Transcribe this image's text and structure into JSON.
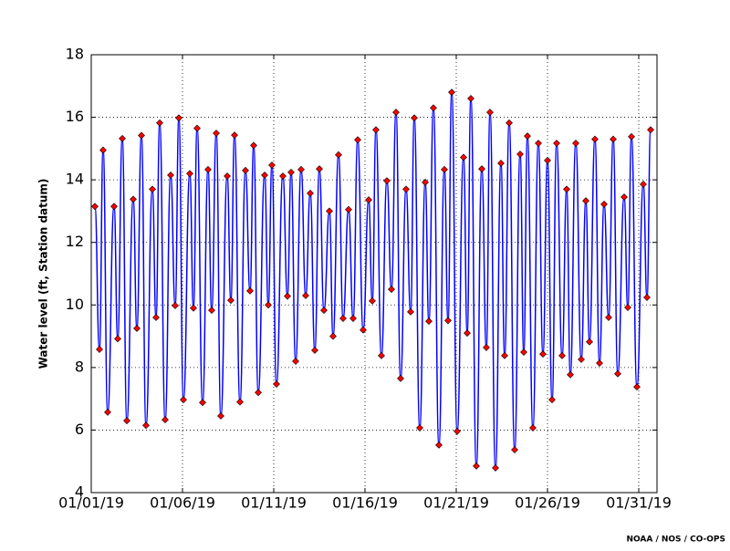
{
  "chart_data": {
    "type": "line",
    "ylabel": "Water level (ft, Station datum)",
    "credit": "NOAA / NOS / CO-OPS",
    "xlim": [
      0,
      31
    ],
    "xticks": [
      {
        "value": 0,
        "label": "01/01/19"
      },
      {
        "value": 5,
        "label": "01/06/19"
      },
      {
        "value": 10,
        "label": "01/11/19"
      },
      {
        "value": 15,
        "label": "01/16/19"
      },
      {
        "value": 20,
        "label": "01/21/19"
      },
      {
        "value": 25,
        "label": "01/26/19"
      },
      {
        "value": 30,
        "label": "01/31/19"
      }
    ],
    "ylim": [
      4,
      18
    ],
    "yticks": [
      4,
      6,
      8,
      10,
      12,
      14,
      16,
      18
    ],
    "grid": true,
    "series": [
      {
        "color": "#0000ff",
        "marker_color": "#ff0000",
        "x": [
          0.2,
          0.45,
          0.65,
          0.9,
          1.25,
          1.45,
          1.7,
          1.95,
          2.3,
          2.5,
          2.75,
          3.0,
          3.35,
          3.55,
          3.75,
          4.05,
          4.35,
          4.6,
          4.8,
          5.05,
          5.4,
          5.6,
          5.8,
          6.1,
          6.4,
          6.6,
          6.85,
          7.1,
          7.45,
          7.65,
          7.85,
          8.15,
          8.45,
          8.7,
          8.9,
          9.15,
          9.5,
          9.7,
          9.9,
          10.15,
          10.5,
          10.75,
          10.95,
          11.2,
          11.5,
          11.75,
          12.0,
          12.25,
          12.5,
          12.75,
          13.05,
          13.25,
          13.55,
          13.8,
          14.1,
          14.35,
          14.6,
          14.9,
          15.2,
          15.4,
          15.6,
          15.9,
          16.2,
          16.45,
          16.7,
          16.95,
          17.25,
          17.5,
          17.7,
          18.0,
          18.3,
          18.5,
          18.75,
          19.05,
          19.35,
          19.55,
          19.75,
          20.05,
          20.4,
          20.6,
          20.8,
          21.1,
          21.4,
          21.65,
          21.85,
          22.15,
          22.45,
          22.65,
          22.9,
          23.2,
          23.5,
          23.7,
          23.9,
          24.2,
          24.5,
          24.75,
          25.0,
          25.25,
          25.5,
          25.8,
          26.05,
          26.25,
          26.55,
          26.85,
          27.1,
          27.3,
          27.6,
          27.85,
          28.1,
          28.35,
          28.6,
          28.85,
          29.2,
          29.4,
          29.6,
          29.9,
          30.25,
          30.45,
          30.65
        ],
        "values": [
          13.15,
          8.58,
          14.95,
          6.57,
          13.15,
          8.92,
          15.32,
          6.3,
          13.38,
          9.25,
          15.42,
          6.15,
          13.7,
          9.6,
          15.82,
          6.33,
          14.15,
          9.98,
          15.98,
          6.97,
          14.2,
          9.9,
          15.65,
          6.88,
          14.33,
          9.83,
          15.49,
          6.45,
          14.12,
          10.15,
          15.43,
          6.9,
          14.3,
          10.45,
          15.1,
          7.2,
          14.15,
          10.0,
          14.47,
          7.47,
          14.12,
          10.28,
          14.24,
          8.2,
          14.33,
          10.3,
          13.57,
          8.55,
          14.35,
          9.83,
          13.0,
          9.0,
          14.8,
          9.57,
          13.05,
          9.57,
          15.28,
          9.2,
          13.36,
          10.13,
          15.6,
          8.38,
          13.97,
          10.5,
          16.16,
          7.65,
          13.7,
          9.78,
          15.98,
          6.07,
          13.92,
          9.48,
          16.3,
          5.52,
          14.33,
          9.5,
          16.8,
          5.96,
          14.72,
          9.1,
          16.6,
          4.85,
          14.35,
          8.64,
          16.16,
          4.79,
          14.53,
          8.38,
          15.82,
          5.37,
          14.82,
          8.49,
          15.4,
          6.07,
          15.17,
          8.43,
          14.62,
          6.97,
          15.17,
          8.38,
          13.7,
          7.77,
          15.17,
          8.26,
          13.33,
          8.82,
          15.3,
          8.14,
          13.22,
          9.6,
          15.3,
          7.8,
          13.45,
          9.92,
          15.38,
          7.38,
          13.86,
          10.24,
          15.6
        ]
      }
    ]
  }
}
